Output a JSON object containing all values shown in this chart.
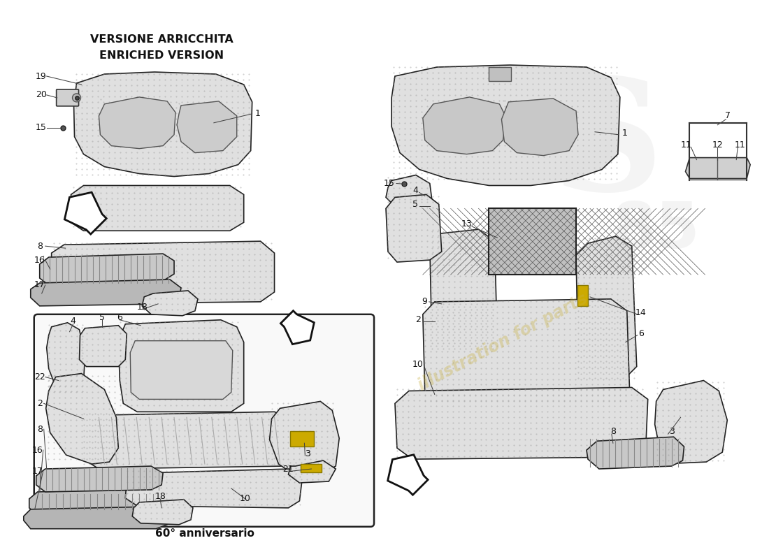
{
  "background_color": "#ffffff",
  "top_left_label1": "VERSIONE ARRICCHITA",
  "top_left_label2": "ENRICHED VERSION",
  "bottom_box_label": "60° anniversario",
  "watermark_text": "illustration for parts",
  "watermark_color": "#c8b040",
  "watermark_alpha": 0.35,
  "logo_color": "#cccccc",
  "logo_alpha": 0.2
}
